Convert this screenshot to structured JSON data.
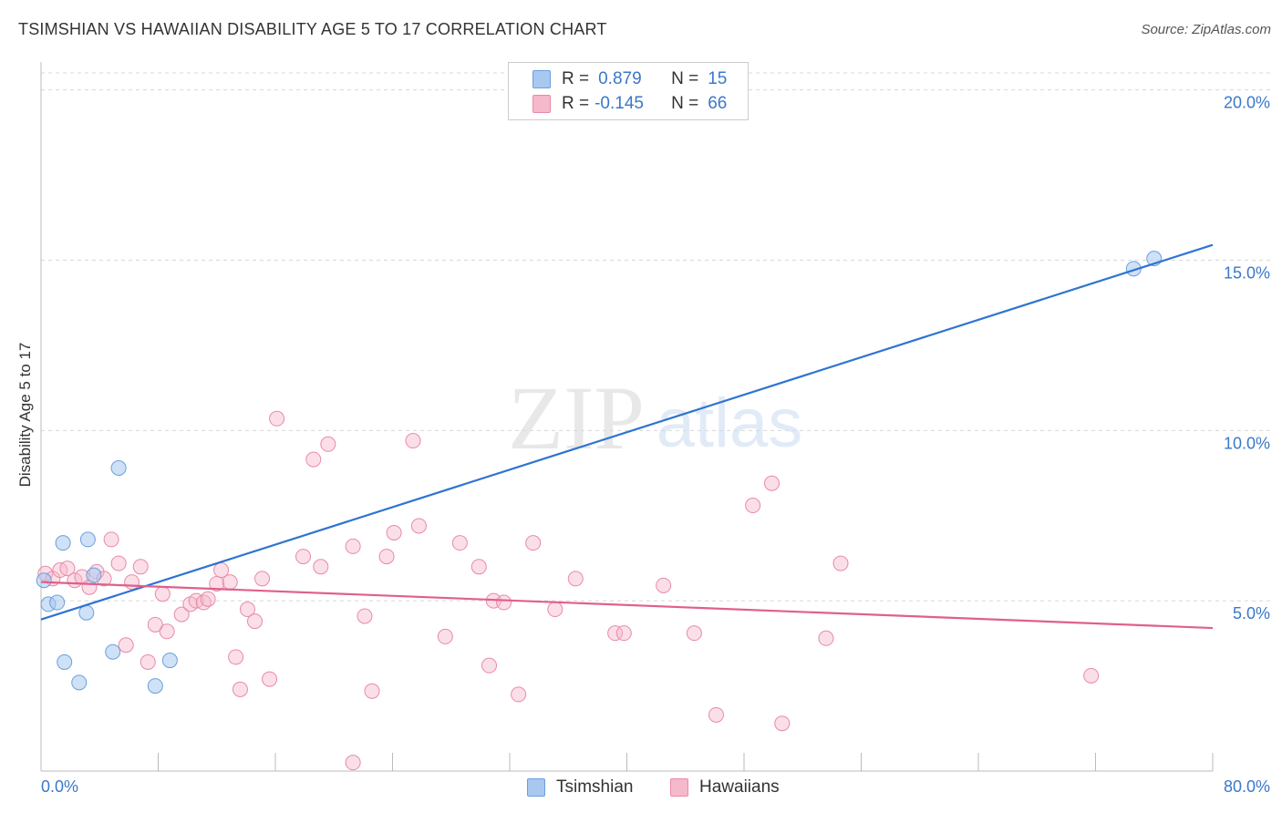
{
  "header": {
    "title": "TSIMSHIAN VS HAWAIIAN DISABILITY AGE 5 TO 17 CORRELATION CHART",
    "source": "Source: ZipAtlas.com"
  },
  "watermark": {
    "zip": "ZIP",
    "atlas": "atlas"
  },
  "legend_stats": [
    {
      "r_label": "R =",
      "r_value": "0.879",
      "n_label": "N =",
      "n_value": "15",
      "color": "#a8c8f0"
    },
    {
      "r_label": "R =",
      "r_value": "-0.145",
      "n_label": "N =",
      "n_value": "66",
      "color": "#f6b8cb"
    }
  ],
  "colors": {
    "tsimshian_fill": "#a8c8f0",
    "tsimshian_stroke": "#6a9fdc",
    "tsimshian_line": "#2f74d0",
    "hawaiian_fill": "#f6b8cb",
    "hawaiian_stroke": "#e88aa6",
    "hawaiian_line": "#e0608a",
    "axis_label": "#3a78c9",
    "grid": "#d8d8d8"
  },
  "chart_data": {
    "type": "scatter",
    "title": "TSIMSHIAN VS HAWAIIAN DISABILITY AGE 5 TO 17 CORRELATION CHART",
    "xlabel": "",
    "ylabel": "Disability Age 5 to 17",
    "xlim": [
      0,
      80
    ],
    "ylim": [
      0,
      20.5
    ],
    "x_tick_labels": [
      "0.0%",
      "80.0%"
    ],
    "y_ticks": [
      5,
      10,
      15,
      20
    ],
    "y_tick_labels": [
      "5.0%",
      "10.0%",
      "15.0%",
      "20.0%"
    ],
    "grid": "horizontal dashed",
    "legend_position": "bottom-center",
    "series": [
      {
        "name": "Tsimshian",
        "points": [
          [
            0.2,
            5.6
          ],
          [
            0.5,
            4.9
          ],
          [
            1.1,
            4.95
          ],
          [
            1.5,
            6.7
          ],
          [
            1.6,
            3.2
          ],
          [
            2.6,
            2.6
          ],
          [
            3.1,
            4.65
          ],
          [
            3.2,
            6.8
          ],
          [
            3.6,
            5.75
          ],
          [
            4.9,
            3.5
          ],
          [
            5.3,
            8.9
          ],
          [
            7.8,
            2.5
          ],
          [
            8.8,
            3.25
          ],
          [
            74.6,
            14.75
          ],
          [
            76.0,
            15.05
          ]
        ],
        "trend": {
          "x": [
            0,
            80
          ],
          "y": [
            4.45,
            15.45
          ]
        }
      },
      {
        "name": "Hawaiians",
        "points": [
          [
            0.3,
            5.8
          ],
          [
            0.8,
            5.65
          ],
          [
            1.3,
            5.9
          ],
          [
            1.8,
            5.95
          ],
          [
            2.3,
            5.6
          ],
          [
            2.8,
            5.7
          ],
          [
            3.3,
            5.4
          ],
          [
            3.8,
            5.85
          ],
          [
            4.3,
            5.65
          ],
          [
            4.8,
            6.8
          ],
          [
            5.3,
            6.1
          ],
          [
            5.8,
            3.7
          ],
          [
            6.2,
            5.55
          ],
          [
            6.8,
            6.0
          ],
          [
            7.3,
            3.2
          ],
          [
            7.8,
            4.3
          ],
          [
            8.3,
            5.2
          ],
          [
            8.6,
            4.1
          ],
          [
            9.6,
            4.6
          ],
          [
            10.2,
            4.9
          ],
          [
            10.6,
            5.0
          ],
          [
            11.1,
            4.95
          ],
          [
            11.4,
            5.05
          ],
          [
            12.0,
            5.5
          ],
          [
            12.3,
            5.9
          ],
          [
            12.9,
            5.55
          ],
          [
            13.3,
            3.35
          ],
          [
            13.6,
            2.4
          ],
          [
            14.1,
            4.75
          ],
          [
            14.6,
            4.4
          ],
          [
            15.1,
            5.65
          ],
          [
            15.6,
            2.7
          ],
          [
            16.1,
            10.35
          ],
          [
            17.9,
            6.3
          ],
          [
            18.6,
            9.15
          ],
          [
            19.1,
            6.0
          ],
          [
            19.6,
            9.6
          ],
          [
            21.3,
            6.6
          ],
          [
            22.1,
            4.55
          ],
          [
            22.6,
            2.35
          ],
          [
            23.6,
            6.3
          ],
          [
            24.1,
            7.0
          ],
          [
            25.4,
            9.7
          ],
          [
            25.8,
            7.2
          ],
          [
            27.6,
            3.95
          ],
          [
            28.6,
            6.7
          ],
          [
            29.9,
            6.0
          ],
          [
            30.6,
            3.1
          ],
          [
            30.9,
            5.0
          ],
          [
            31.6,
            4.95
          ],
          [
            32.6,
            2.25
          ],
          [
            33.6,
            6.7
          ],
          [
            35.1,
            4.75
          ],
          [
            36.5,
            5.65
          ],
          [
            39.2,
            4.05
          ],
          [
            39.8,
            4.05
          ],
          [
            42.5,
            5.45
          ],
          [
            44.6,
            4.05
          ],
          [
            46.1,
            1.65
          ],
          [
            48.6,
            7.8
          ],
          [
            49.9,
            8.45
          ],
          [
            50.6,
            1.4
          ],
          [
            53.6,
            3.9
          ],
          [
            54.6,
            6.1
          ],
          [
            71.7,
            2.8
          ],
          [
            21.3,
            0.25
          ]
        ],
        "trend": {
          "x": [
            0,
            80
          ],
          "y": [
            5.55,
            4.2
          ]
        }
      }
    ]
  }
}
